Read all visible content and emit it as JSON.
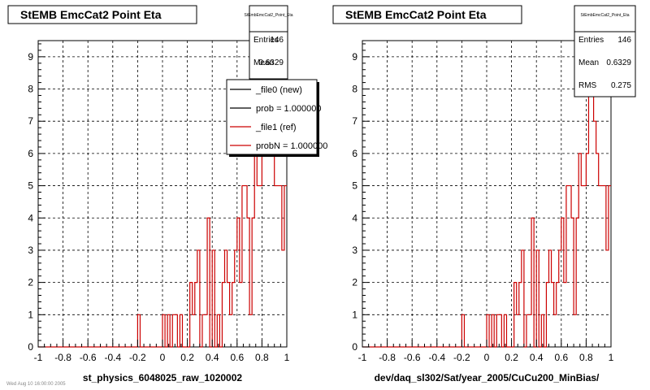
{
  "chart_data": [
    {
      "type": "histogram",
      "title": "StEMB EmcCat2 Point Eta",
      "xlabel": "st_physics_6048025_raw_1020002",
      "ylabel": "",
      "xlim": [
        -1,
        1
      ],
      "ylim": [
        0,
        9.5
      ],
      "grid": true,
      "x_ticks": [
        "-1",
        "-0.8",
        "-0.6",
        "-0.4",
        "-0.2",
        "0",
        "0.2",
        "0.4",
        "0.6",
        "0.8",
        "1"
      ],
      "y_ticks": [
        "0",
        "1",
        "2",
        "3",
        "4",
        "5",
        "6",
        "7",
        "8",
        "9"
      ],
      "stats": {
        "name": "StEmbEmcCat2_Point_Eta",
        "rows": [
          {
            "label": "Entries",
            "value": "146"
          },
          {
            "label": "Mean",
            "value": "0.6329"
          }
        ]
      },
      "legend": {
        "position": "top-right",
        "entries": [
          {
            "label": "_file0 (new)",
            "color": "#000000"
          },
          {
            "label": "prob = 1.000000",
            "color": "#000000"
          },
          {
            "label": "_file1 (ref)",
            "color": "#cc0000"
          },
          {
            "label": "probN = 1.000000",
            "color": "#cc0000"
          }
        ]
      },
      "series": [
        {
          "color": "#cc0000",
          "bin_edges_start": -1.0,
          "bin_width": 0.02,
          "values": [
            0,
            0,
            0,
            0,
            0,
            0,
            0,
            0,
            0,
            0,
            0,
            0,
            0,
            0,
            0,
            0,
            0,
            0,
            0,
            0,
            0,
            0,
            0,
            0,
            0,
            0,
            0,
            0,
            0,
            0,
            0,
            0,
            0,
            0,
            0,
            0,
            0,
            0,
            0,
            0,
            1,
            0,
            0,
            0,
            0,
            0,
            0,
            0,
            0,
            0,
            1,
            0,
            1,
            0,
            1,
            1,
            0,
            1,
            0,
            0,
            0,
            2,
            1,
            2,
            3,
            0,
            1,
            1,
            4,
            0,
            3,
            0,
            1,
            0,
            2,
            3,
            2,
            1,
            2,
            3,
            4,
            2,
            5,
            5,
            4,
            1,
            4,
            6,
            5,
            5,
            6,
            8,
            9,
            7,
            6,
            5,
            5,
            5,
            3,
            5
          ]
        }
      ]
    },
    {
      "type": "histogram",
      "title": "StEMB EmcCat2 Point Eta",
      "xlabel": "dev/daq_sl302/Sat/year_2005/CuCu200_MinBias/",
      "ylabel": "",
      "xlim": [
        -1,
        1
      ],
      "ylim": [
        0,
        9.5
      ],
      "grid": true,
      "x_ticks": [
        "-1",
        "-0.8",
        "-0.6",
        "-0.4",
        "-0.2",
        "0",
        "0.2",
        "0.4",
        "0.6",
        "0.8",
        "1"
      ],
      "y_ticks": [
        "0",
        "1",
        "2",
        "3",
        "4",
        "5",
        "6",
        "7",
        "8",
        "9"
      ],
      "stats": {
        "name": "StEmbEmcCat2_Point_Eta",
        "rows": [
          {
            "label": "Entries",
            "value": "146"
          },
          {
            "label": "Mean",
            "value": "0.6329"
          },
          {
            "label": "RMS",
            "value": "0.275"
          }
        ]
      },
      "series": [
        {
          "color": "#cc0000",
          "bin_edges_start": -1.0,
          "bin_width": 0.02,
          "values": [
            0,
            0,
            0,
            0,
            0,
            0,
            0,
            0,
            0,
            0,
            0,
            0,
            0,
            0,
            0,
            0,
            0,
            0,
            0,
            0,
            0,
            0,
            0,
            0,
            0,
            0,
            0,
            0,
            0,
            0,
            0,
            0,
            0,
            0,
            0,
            0,
            0,
            0,
            0,
            0,
            1,
            0,
            0,
            0,
            0,
            0,
            0,
            0,
            0,
            0,
            1,
            0,
            1,
            0,
            1,
            1,
            0,
            1,
            0,
            0,
            0,
            2,
            1,
            2,
            3,
            0,
            1,
            1,
            4,
            0,
            3,
            0,
            1,
            0,
            2,
            3,
            2,
            1,
            2,
            3,
            4,
            2,
            5,
            5,
            4,
            1,
            4,
            6,
            5,
            5,
            6,
            8,
            9,
            7,
            6,
            5,
            5,
            5,
            3,
            5
          ]
        }
      ]
    }
  ],
  "footer_note": "Wed Aug 10 16:00:00 2005"
}
